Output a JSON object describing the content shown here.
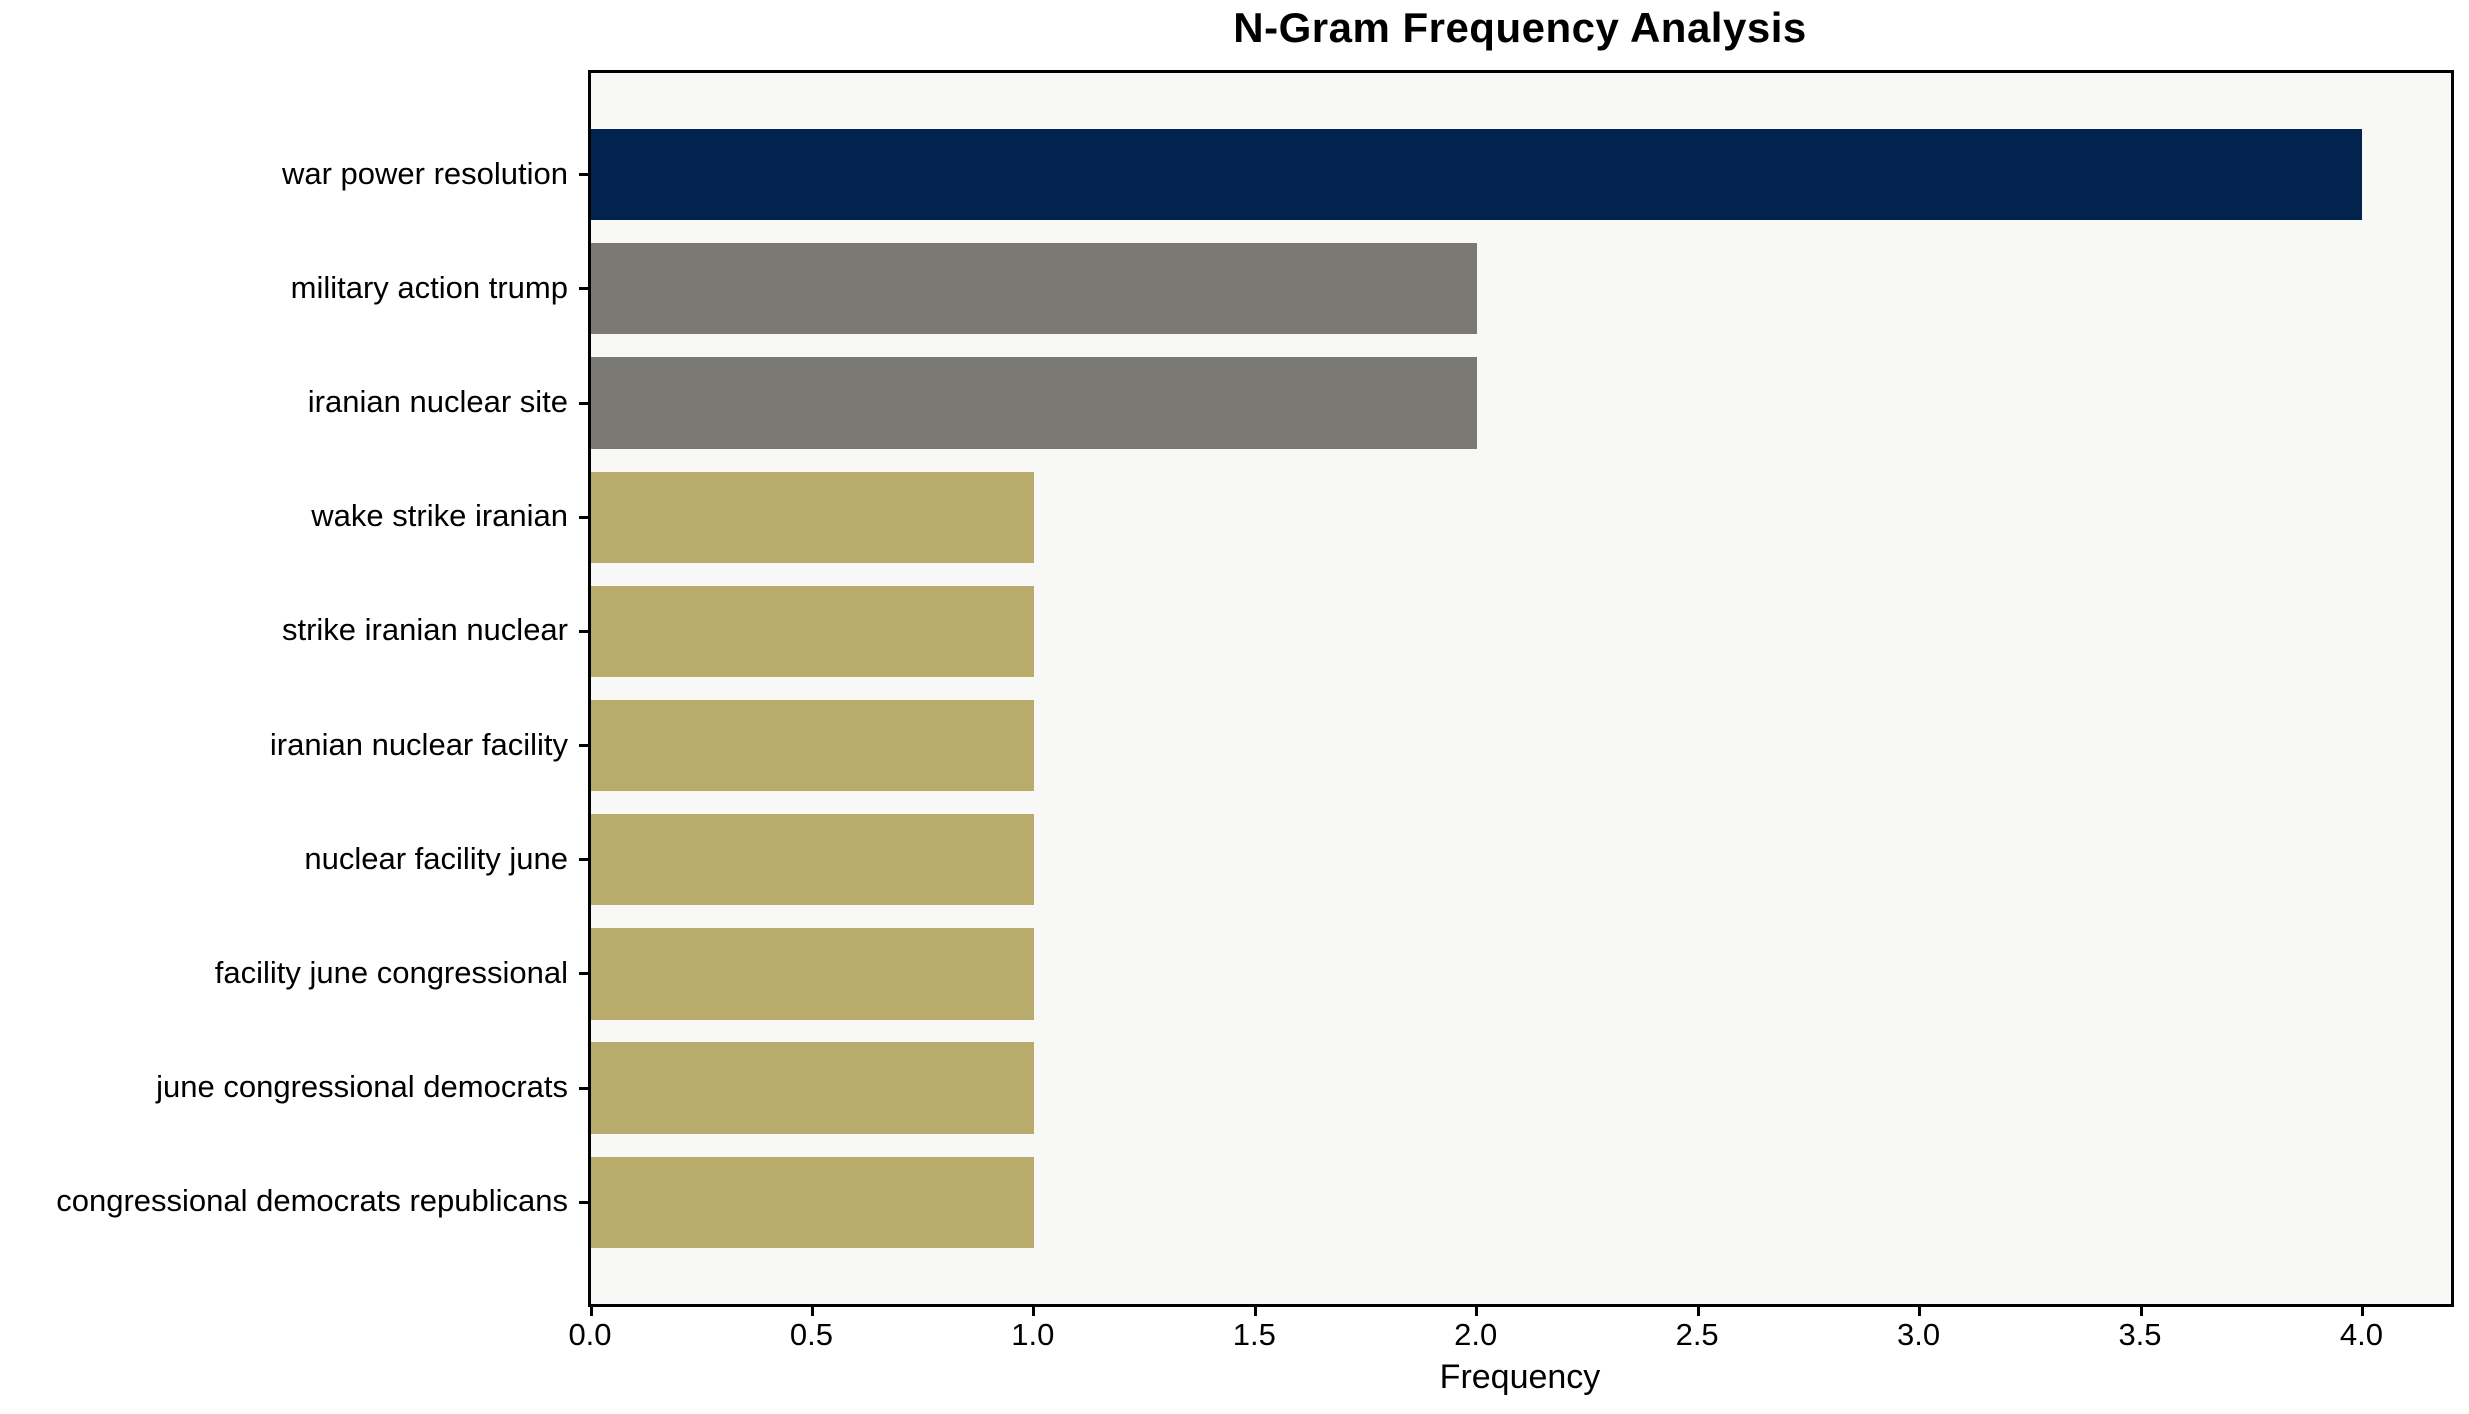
{
  "chart_data": {
    "type": "bar",
    "orientation": "horizontal",
    "title": "N-Gram Frequency Analysis",
    "xlabel": "Frequency",
    "ylabel": "",
    "categories": [
      "war power resolution",
      "military action trump",
      "iranian nuclear site",
      "wake strike iranian",
      "strike iranian nuclear",
      "iranian nuclear facility",
      "nuclear facility june",
      "facility june congressional",
      "june congressional democrats",
      "congressional democrats republicans"
    ],
    "values": [
      4,
      2,
      2,
      1,
      1,
      1,
      1,
      1,
      1,
      1
    ],
    "bar_colors": [
      "#01234e",
      "#7b7974",
      "#7b7974",
      "#b9ab6b",
      "#b9ab6b",
      "#b9ab6b",
      "#b9ab6b",
      "#b9ab6b",
      "#b9ab6b",
      "#b9ab6b"
    ],
    "xlim": [
      0,
      4.2
    ],
    "xticks": [
      0,
      0.5,
      1,
      1.5,
      2,
      2.5,
      3,
      3.5,
      4
    ],
    "xtick_labels": [
      "0.0",
      "0.5",
      "1.0",
      "1.5",
      "2.0",
      "2.5",
      "3.0",
      "3.5",
      "4.0"
    ],
    "grid": false,
    "legend": null,
    "colors": {
      "plot_background": "#f8f8f6",
      "figure_background": "#ffffff",
      "frame": "#000000",
      "text": "#000000",
      "bar_navy": "#01234e",
      "bar_gray": "#7b7974",
      "bar_khaki": "#b9ab6b"
    }
  }
}
